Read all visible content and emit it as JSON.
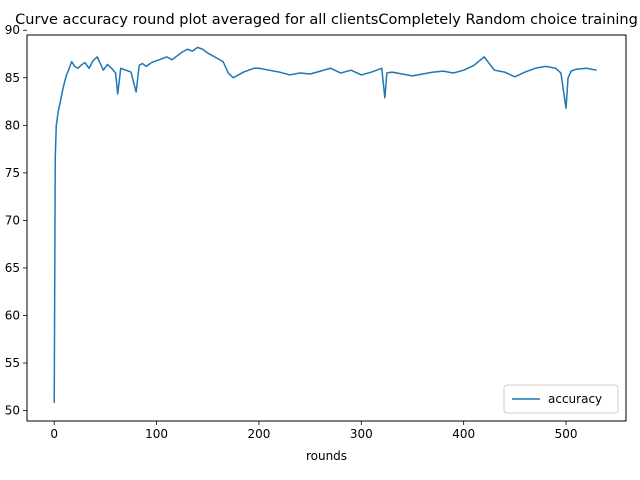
{
  "chart_data": {
    "type": "line",
    "title": "Curve accuracy round plot averaged for all clientsCompletely Random choice training",
    "xlabel": "rounds",
    "ylabel": "",
    "xlim": [
      -26.6,
      558.6
    ],
    "ylim": [
      48.9,
      89.5
    ],
    "xticks": [
      0,
      100,
      200,
      300,
      400,
      500
    ],
    "yticks": [
      50,
      55,
      60,
      65,
      70,
      75,
      80,
      85,
      90
    ],
    "grid": false,
    "legend": {
      "position": "lower-right",
      "entries": [
        "accuracy"
      ]
    },
    "series": [
      {
        "name": "accuracy",
        "color": "#1f77b4",
        "x": [
          0,
          1,
          2,
          4,
          6,
          8,
          10,
          12,
          14,
          17,
          20,
          23,
          26,
          30,
          34,
          38,
          42,
          45,
          48,
          52,
          56,
          60,
          62,
          65,
          70,
          75,
          80,
          83,
          86,
          90,
          95,
          100,
          105,
          110,
          115,
          120,
          125,
          130,
          135,
          140,
          145,
          150,
          155,
          160,
          165,
          170,
          175,
          180,
          185,
          190,
          195,
          200,
          210,
          220,
          230,
          240,
          250,
          260,
          270,
          280,
          290,
          300,
          310,
          320,
          323,
          325,
          330,
          340,
          350,
          360,
          370,
          380,
          390,
          400,
          410,
          420,
          430,
          440,
          450,
          460,
          470,
          480,
          490,
          495,
          500,
          502,
          505,
          510,
          520,
          530
        ],
        "values": [
          50.8,
          76.5,
          80.0,
          81.5,
          82.5,
          83.6,
          84.5,
          85.3,
          85.8,
          86.7,
          86.2,
          86.0,
          86.3,
          86.6,
          86.0,
          86.8,
          87.2,
          86.5,
          85.8,
          86.4,
          86.0,
          85.5,
          83.3,
          86.0,
          85.8,
          85.6,
          83.5,
          86.3,
          86.5,
          86.2,
          86.6,
          86.8,
          87.0,
          87.2,
          86.9,
          87.3,
          87.7,
          88.0,
          87.8,
          88.2,
          88.0,
          87.6,
          87.3,
          87.0,
          86.7,
          85.5,
          85.0,
          85.3,
          85.6,
          85.8,
          86.0,
          86.0,
          85.8,
          85.6,
          85.3,
          85.5,
          85.4,
          85.7,
          86.0,
          85.5,
          85.8,
          85.3,
          85.6,
          86.0,
          82.9,
          85.5,
          85.6,
          85.4,
          85.2,
          85.4,
          85.6,
          85.7,
          85.5,
          85.8,
          86.3,
          87.2,
          85.8,
          85.6,
          85.1,
          85.6,
          86.0,
          86.2,
          86.0,
          85.5,
          81.8,
          85.0,
          85.7,
          85.9,
          86.0,
          85.8
        ]
      }
    ]
  }
}
